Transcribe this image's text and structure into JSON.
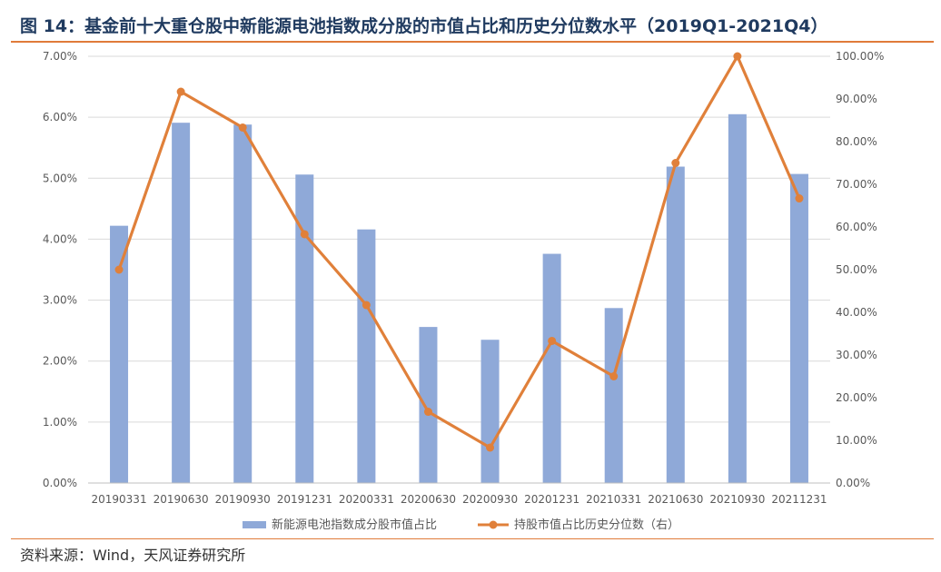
{
  "header": {
    "title": "图 14：基金前十大重仓股中新能源电池指数成分股的市值占比和历史分位数水平（2019Q1-2021Q4）"
  },
  "footer": {
    "source": "资料来源：Wind，天风证券研究所"
  },
  "colors": {
    "bar": "#8fa9d8",
    "line": "#e0803a",
    "grid": "#d9d9d9",
    "rule": "#e07b3a"
  },
  "chart_data": {
    "type": "bar",
    "title": "",
    "categories": [
      "20190331",
      "20190630",
      "20190930",
      "20191231",
      "20200331",
      "20200630",
      "20200930",
      "20201231",
      "20210331",
      "20210630",
      "20210930",
      "20211231"
    ],
    "series": [
      {
        "name": "新能源电池指数成分股市值占比",
        "type": "bar",
        "axis": "left",
        "values": [
          4.22,
          5.91,
          5.88,
          5.06,
          4.16,
          2.56,
          2.35,
          3.76,
          2.87,
          5.19,
          6.05,
          5.07
        ]
      },
      {
        "name": "持股市值占比历史分位数（右）",
        "type": "line",
        "axis": "right",
        "values": [
          50.0,
          91.7,
          83.3,
          58.3,
          41.7,
          16.7,
          8.3,
          33.3,
          25.0,
          75.0,
          100.0,
          66.7
        ]
      }
    ],
    "left_axis": {
      "ylim": [
        0,
        7
      ],
      "ticks": [
        "0.00%",
        "1.00%",
        "2.00%",
        "3.00%",
        "4.00%",
        "5.00%",
        "6.00%",
        "7.00%"
      ]
    },
    "right_axis": {
      "ylim": [
        0,
        100
      ],
      "ticks": [
        "0.00%",
        "10.00%",
        "20.00%",
        "30.00%",
        "40.00%",
        "50.00%",
        "60.00%",
        "70.00%",
        "80.00%",
        "90.00%",
        "100.00%"
      ]
    },
    "grid": true,
    "legend_position": "bottom"
  }
}
